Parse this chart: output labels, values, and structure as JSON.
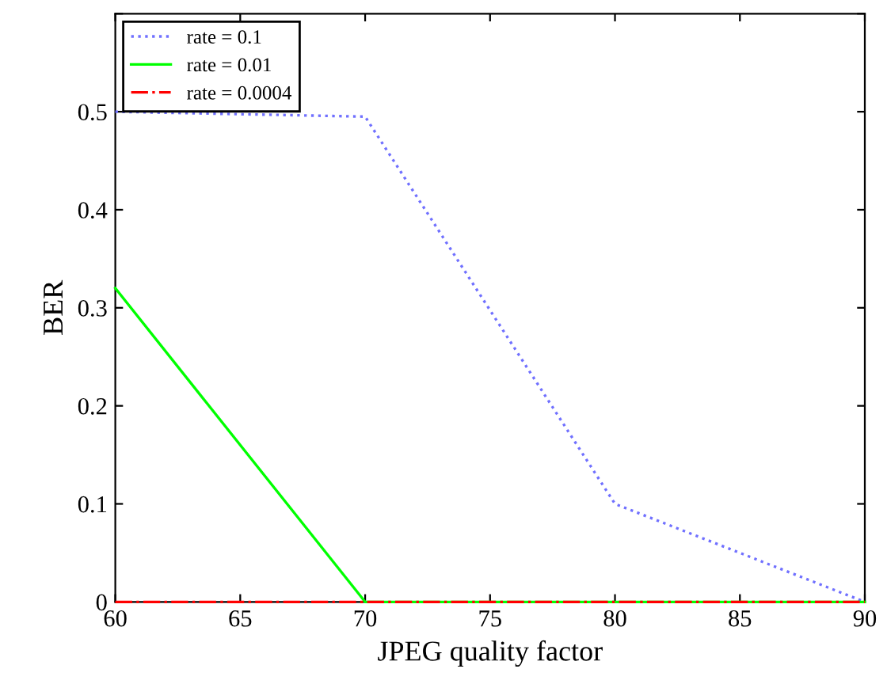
{
  "chart_data": {
    "type": "line",
    "xlabel": "JPEG quality factor",
    "ylabel": "BER",
    "x": [
      60,
      70,
      80,
      90
    ],
    "series": [
      {
        "name": "rate = 0.1",
        "color": "#7070ff",
        "values": [
          0.5,
          0.495,
          0.1,
          0
        ],
        "line_style": "dotted"
      },
      {
        "name": "rate = 0.01",
        "color": "#00ff00",
        "values": [
          0.32,
          0,
          0,
          0
        ],
        "line_style": "solid"
      },
      {
        "name": "rate = 0.0004",
        "color": "#ff0000",
        "values": [
          0,
          0,
          0,
          0
        ],
        "line_style": "dashdot"
      }
    ],
    "xlim": [
      60,
      90
    ],
    "ylim": [
      0,
      0.6
    ],
    "xticks": [
      60,
      65,
      70,
      75,
      80,
      85,
      90
    ],
    "yticks": [
      0,
      0.1,
      0.2,
      0.3,
      0.4,
      0.5,
      {
        "value": 0.6,
        "label": null
      }
    ],
    "grid": false,
    "legend": "top left",
    "marker": "none"
  }
}
